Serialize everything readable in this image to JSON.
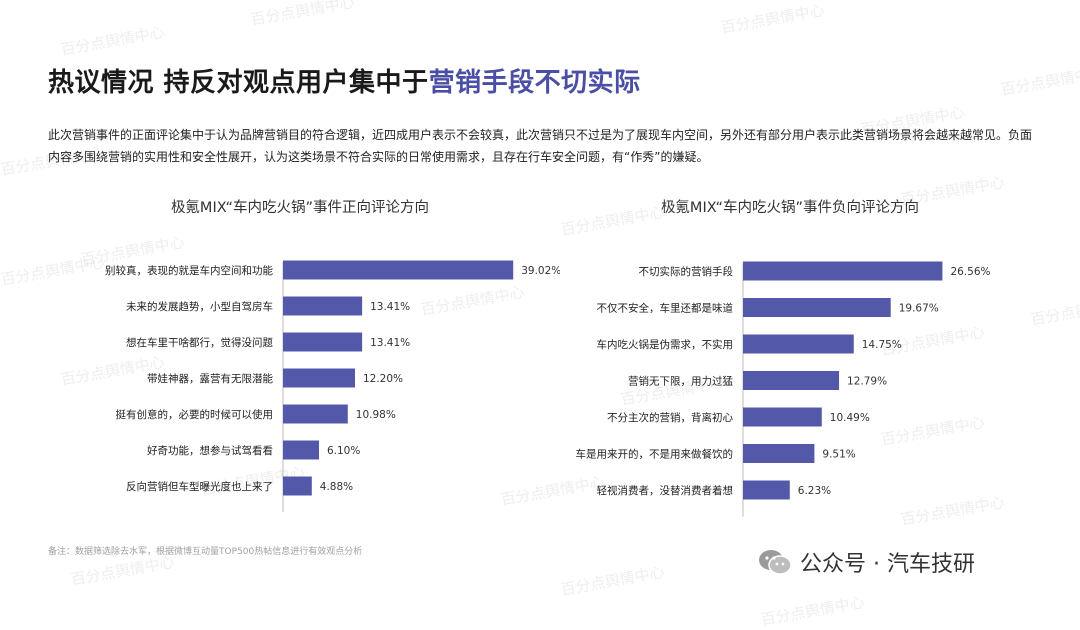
{
  "header": {
    "title_main": "热议情况  持反对观点用户集中于",
    "title_highlight": "营销手段不切实际"
  },
  "summary": "此次营销事件的正面评论集中于认为品牌营销目的符合逻辑，近四成用户表示不会较真，此次营销只不过是为了展现车内空间，另外还有部分用户表示此类营销场景将会越来越常见。负面内容多围绕营销的实用性和安全性展开，认为这类场景不符合实际的日常使用需求，且存在行车安全问题，有“作秀”的嫌疑。",
  "watermark_text": "百分点舆情中心",
  "footer": {
    "note": "备注：数据筛选除去水军，根据微博互动量TOP500热帖信息进行有效观点分析",
    "brand": "公众号 · 汽车技研"
  },
  "colors": {
    "bar": "#5358a8",
    "highlight": "#4a4fa5"
  },
  "chart_data": [
    {
      "type": "bar",
      "orientation": "horizontal",
      "title": "极氪MIX“车内吃火锅”事件正向评论方向",
      "categories": [
        "别较真，表现的就是车内空间和功能",
        "未来的发展趋势，小型自驾房车",
        "想在车里干啥都行，觉得没问题",
        "带娃神器，露营有无限潜能",
        "挺有创意的，必要的时候可以使用",
        "好奇功能，想参与试驾看看",
        "反向营销但车型曝光度也上来了"
      ],
      "values": [
        39.02,
        13.41,
        13.41,
        12.2,
        10.98,
        6.1,
        4.88
      ],
      "value_labels": [
        "39.02%",
        "13.41%",
        "13.41%",
        "12.20%",
        "10.98%",
        "6.10%",
        "4.88%"
      ],
      "xlim": [
        0,
        40
      ]
    },
    {
      "type": "bar",
      "orientation": "horizontal",
      "title": "极氪MIX“车内吃火锅”事件负向评论方向",
      "categories": [
        "不切实际的营销手段",
        "不仅不安全，车里还都是味道",
        "车内吃火锅是伪需求，不实用",
        "营销无下限，用力过猛",
        "不分主次的营销，背离初心",
        "车是用来开的，不是用来做餐饮的",
        "轻视消费者，没替消费者着想"
      ],
      "values": [
        26.56,
        19.67,
        14.75,
        12.79,
        10.49,
        9.51,
        6.23
      ],
      "value_labels": [
        "26.56%",
        "19.67%",
        "14.75%",
        "12.79%",
        "10.49%",
        "9.51%",
        "6.23%"
      ],
      "xlim": [
        0,
        27.3
      ]
    }
  ]
}
